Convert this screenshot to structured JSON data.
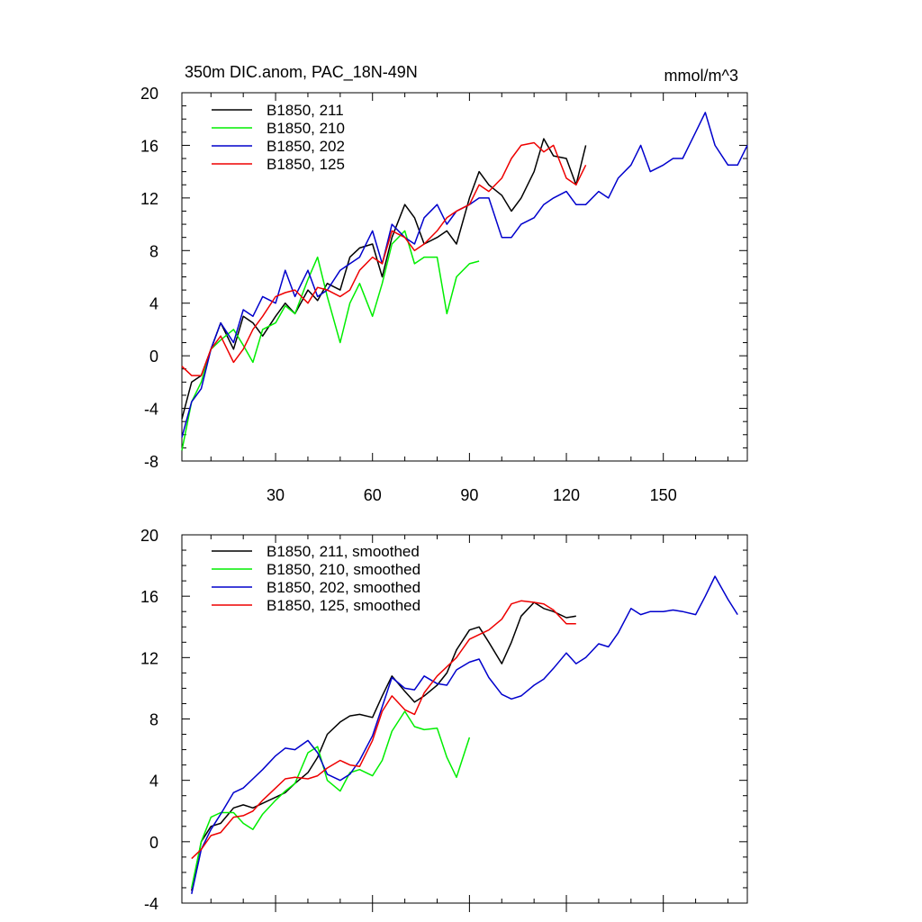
{
  "chart_data": [
    {
      "type": "line",
      "title": "350m DIC.anom, PAC_18N-49N",
      "units": "mmol/m^3",
      "xlim": [
        1,
        176
      ],
      "ylim": [
        -8,
        20
      ],
      "xticks": [
        30,
        60,
        90,
        120,
        150
      ],
      "xtick_labels": [
        "30",
        "60",
        "90",
        "120",
        "150"
      ],
      "yticks": [
        -8,
        -4,
        0,
        4,
        8,
        12,
        16,
        20
      ],
      "ytick_labels": [
        "-8",
        "-4",
        "0",
        "4",
        "8",
        "12",
        "16",
        "20"
      ],
      "legend_position": "top-left",
      "series": [
        {
          "name": "B1850, 211",
          "color": "#000000",
          "x": [
            1,
            4,
            7,
            10,
            13,
            17,
            20,
            23,
            26,
            30,
            33,
            36,
            40,
            43,
            46,
            50,
            53,
            56,
            60,
            63,
            66,
            70,
            73,
            76,
            80,
            83,
            86,
            90,
            93,
            96,
            100,
            103,
            106,
            110,
            113,
            116,
            120,
            123,
            126
          ],
          "values": [
            -4.8,
            -2,
            -1.5,
            0.5,
            2.5,
            0.5,
            3,
            2.5,
            1.5,
            3,
            4,
            3.2,
            5,
            4.2,
            5.5,
            5,
            7.5,
            8.2,
            8.5,
            6,
            9,
            11.5,
            10.5,
            8.5,
            9,
            9.5,
            8.5,
            12,
            14,
            13,
            12.2,
            11,
            12,
            14,
            16.5,
            15.2,
            15,
            13,
            16
          ]
        },
        {
          "name": "B1850, 210",
          "color": "#00ee00",
          "x": [
            1,
            4,
            7,
            10,
            13,
            17,
            20,
            23,
            26,
            30,
            33,
            36,
            40,
            43,
            46,
            50,
            53,
            56,
            60,
            63,
            66,
            70,
            73,
            76,
            80,
            83,
            86,
            90,
            93
          ],
          "values": [
            -7.2,
            -3.5,
            -2,
            0.5,
            1.2,
            2,
            0.8,
            -0.5,
            2,
            2.5,
            3.8,
            3.2,
            5.8,
            7.5,
            4.5,
            1,
            4,
            5.5,
            3,
            5.5,
            8.5,
            9.5,
            7,
            7.5,
            7.5,
            3.2,
            6,
            7,
            7.2
          ]
        },
        {
          "name": "B1850, 202",
          "color": "#0000cc",
          "x": [
            1,
            4,
            7,
            10,
            13,
            17,
            20,
            23,
            26,
            30,
            33,
            36,
            40,
            43,
            46,
            50,
            53,
            56,
            60,
            63,
            66,
            70,
            73,
            76,
            80,
            83,
            86,
            90,
            93,
            96,
            100,
            103,
            106,
            110,
            113,
            116,
            120,
            123,
            126,
            130,
            133,
            136,
            140,
            143,
            146,
            150,
            153,
            156,
            160,
            163,
            166,
            170,
            173,
            176
          ],
          "values": [
            -6.2,
            -3.5,
            -2.5,
            0.5,
            2.5,
            1,
            3.5,
            3,
            4.5,
            4,
            6.5,
            4.5,
            6.5,
            4.5,
            5,
            6.5,
            7,
            7.5,
            9.5,
            7,
            10,
            9,
            8.5,
            10.5,
            11.5,
            10,
            11,
            11.5,
            12,
            12,
            9,
            9,
            10,
            10.5,
            11.5,
            12,
            12.5,
            11.5,
            11.5,
            12.5,
            12,
            13.5,
            14.5,
            16,
            14,
            14.5,
            15,
            15,
            17,
            18.5,
            16,
            14.5,
            14.5,
            16
          ]
        },
        {
          "name": "B1850, 125",
          "color": "#ee0000",
          "x": [
            1,
            4,
            7,
            10,
            13,
            17,
            20,
            23,
            26,
            30,
            33,
            36,
            40,
            43,
            46,
            50,
            53,
            56,
            60,
            63,
            66,
            70,
            73,
            76,
            80,
            83,
            86,
            90,
            93,
            96,
            100,
            103,
            106,
            110,
            113,
            116,
            120,
            123,
            126
          ],
          "values": [
            -0.8,
            -1.5,
            -1.5,
            0.5,
            1.5,
            -0.5,
            0.5,
            2,
            3,
            4.5,
            4.8,
            5,
            4,
            5.2,
            5,
            4.5,
            5,
            6.5,
            7.5,
            7,
            9.5,
            9,
            8,
            8.5,
            9.5,
            10.5,
            11,
            11.5,
            13,
            12.5,
            13.5,
            15,
            16,
            16.2,
            15.5,
            16,
            13.5,
            13,
            14.5
          ]
        }
      ]
    },
    {
      "type": "line",
      "title": "",
      "xlim": [
        1,
        176
      ],
      "ylim": [
        -4,
        20
      ],
      "xticks": [
        30,
        60,
        90,
        120,
        150
      ],
      "yticks": [
        -4,
        0,
        4,
        8,
        12,
        16,
        20
      ],
      "ytick_labels": [
        "-4",
        "0",
        "4",
        "8",
        "12",
        "16",
        "20"
      ],
      "legend_position": "top-left",
      "series": [
        {
          "name": "B1850, 211, smoothed",
          "color": "#000000",
          "x": [
            4,
            7,
            10,
            13,
            17,
            20,
            23,
            26,
            30,
            33,
            36,
            40,
            43,
            46,
            50,
            53,
            56,
            60,
            63,
            66,
            70,
            73,
            76,
            80,
            83,
            86,
            90,
            93,
            96,
            100,
            103,
            106,
            110,
            113,
            116,
            120,
            123
          ],
          "values": [
            -3.2,
            0,
            1,
            1.2,
            2.2,
            2.4,
            2.2,
            2.5,
            2.9,
            3.2,
            3.8,
            4.5,
            5.5,
            7,
            7.8,
            8.2,
            8.3,
            8.1,
            9.5,
            10.8,
            9.8,
            9.1,
            9.5,
            10.2,
            11,
            12.5,
            13.8,
            14,
            13,
            11.6,
            13,
            14.7,
            15.6,
            15.2,
            15,
            14.6,
            14.7
          ]
        },
        {
          "name": "B1850, 210, smoothed",
          "color": "#00ee00",
          "x": [
            4,
            7,
            10,
            13,
            17,
            20,
            23,
            26,
            30,
            33,
            36,
            40,
            43,
            46,
            50,
            53,
            56,
            60,
            63,
            66,
            70,
            73,
            76,
            80,
            83,
            86,
            90
          ],
          "values": [
            -3,
            0,
            1.6,
            1.9,
            1.9,
            1.2,
            0.8,
            1.8,
            2.7,
            3.3,
            3.8,
            5.8,
            6.2,
            4,
            3.3,
            4.5,
            4.7,
            4.3,
            5.3,
            7.2,
            8.5,
            7.5,
            7.3,
            7.4,
            5.5,
            4.2,
            6.8
          ]
        },
        {
          "name": "B1850, 202, smoothed",
          "color": "#0000cc",
          "x": [
            4,
            7,
            10,
            13,
            17,
            20,
            23,
            26,
            30,
            33,
            36,
            40,
            43,
            46,
            50,
            53,
            56,
            60,
            63,
            66,
            70,
            73,
            76,
            80,
            83,
            86,
            90,
            93,
            96,
            100,
            103,
            106,
            110,
            113,
            116,
            120,
            123,
            126,
            130,
            133,
            136,
            140,
            143,
            146,
            150,
            153,
            156,
            160,
            163,
            166,
            170,
            173
          ],
          "values": [
            -3.4,
            -0.5,
            0.8,
            1.8,
            3.2,
            3.5,
            4.1,
            4.7,
            5.6,
            6.1,
            6,
            6.6,
            5.8,
            4.4,
            4,
            4.4,
            5.3,
            6.9,
            8.8,
            10.7,
            10,
            9.9,
            10.8,
            10.3,
            10.2,
            11.2,
            11.7,
            11.9,
            10.7,
            9.6,
            9.3,
            9.5,
            10.2,
            10.6,
            11.3,
            12.3,
            11.6,
            12,
            12.9,
            12.7,
            13.6,
            15.2,
            14.8,
            15,
            15,
            15.1,
            15,
            14.8,
            16,
            17.3,
            15.8,
            14.8
          ]
        },
        {
          "name": "B1850, 125, smoothed",
          "color": "#ee0000",
          "x": [
            4,
            7,
            10,
            13,
            17,
            20,
            23,
            26,
            30,
            33,
            36,
            40,
            43,
            46,
            50,
            53,
            56,
            60,
            63,
            66,
            70,
            73,
            76,
            80,
            83,
            86,
            90,
            93,
            96,
            100,
            103,
            106,
            110,
            113,
            116,
            120,
            123
          ],
          "values": [
            -1.1,
            -0.5,
            0.4,
            0.6,
            1.6,
            1.7,
            2,
            2.7,
            3.5,
            4.1,
            4.2,
            4.1,
            4.3,
            4.8,
            5.3,
            5,
            4.9,
            6.6,
            8.5,
            9.5,
            8.6,
            8.3,
            9.7,
            10.8,
            11.4,
            12,
            13.2,
            13.5,
            13.8,
            14.5,
            15.5,
            15.7,
            15.6,
            15.5,
            15.1,
            14.2,
            14.2
          ]
        }
      ]
    }
  ]
}
